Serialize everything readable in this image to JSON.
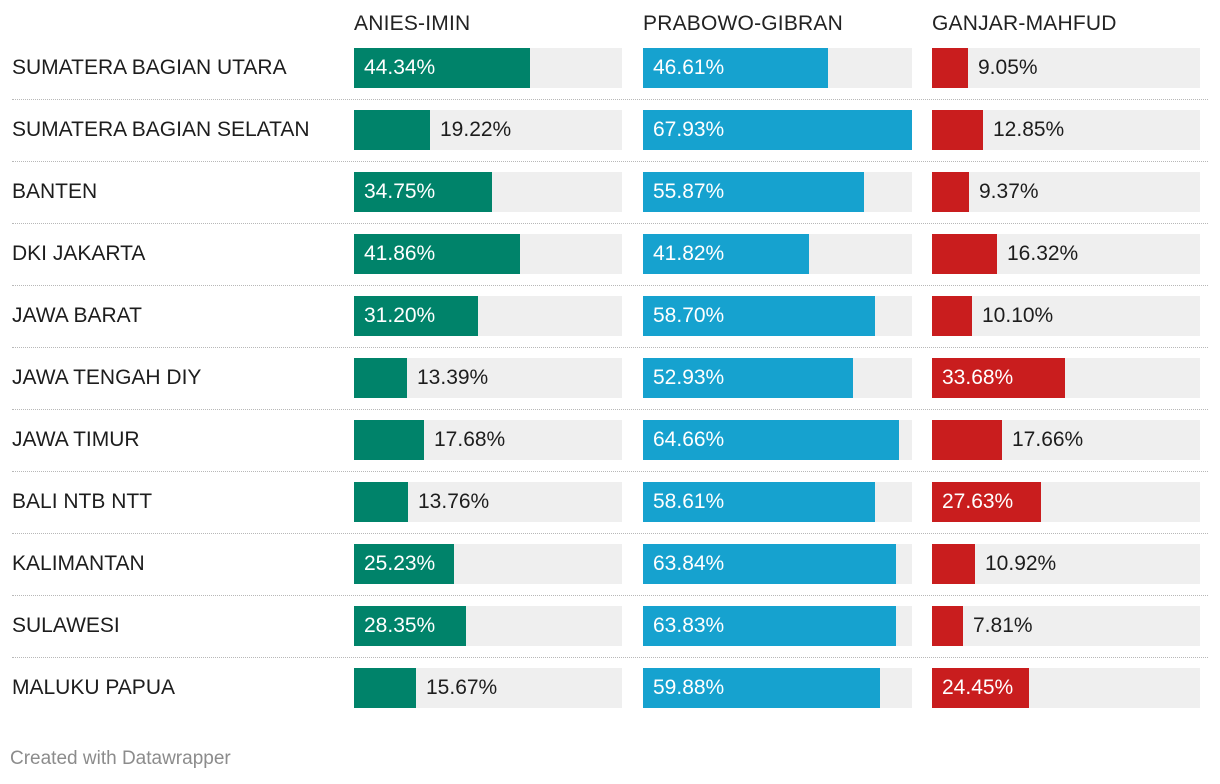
{
  "chart_data": {
    "type": "bar",
    "title": "",
    "xlabel": "",
    "ylabel": "",
    "xlim": [
      0,
      67.93
    ],
    "categories": [
      "SUMATERA BAGIAN UTARA",
      "SUMATERA BAGIAN SELATAN",
      "BANTEN",
      "DKI JAKARTA",
      "JAWA BARAT",
      "JAWA TENGAH DIY",
      "JAWA TIMUR",
      "BALI NTB NTT",
      "KALIMANTAN",
      "SULAWESI",
      "MALUKU PAPUA"
    ],
    "series": [
      {
        "name": "ANIES-IMIN",
        "color": "#00836a",
        "values": [
          44.34,
          19.22,
          34.75,
          41.86,
          31.2,
          13.39,
          17.68,
          13.76,
          25.23,
          28.35,
          15.67
        ]
      },
      {
        "name": "PRABOWO-GIBRAN",
        "color": "#16a2cf",
        "values": [
          46.61,
          67.93,
          55.87,
          41.82,
          58.7,
          52.93,
          64.66,
          58.61,
          63.84,
          63.83,
          59.88
        ]
      },
      {
        "name": "GANJAR-MAHFUD",
        "color": "#c91d1e",
        "values": [
          9.05,
          12.85,
          9.37,
          16.32,
          10.1,
          33.68,
          17.66,
          27.63,
          10.92,
          7.81,
          24.45
        ]
      }
    ],
    "value_suffix": "%",
    "decimals": 2
  },
  "colors": {
    "track": "#efefef"
  },
  "footer": {
    "credit": "Created with Datawrapper"
  }
}
